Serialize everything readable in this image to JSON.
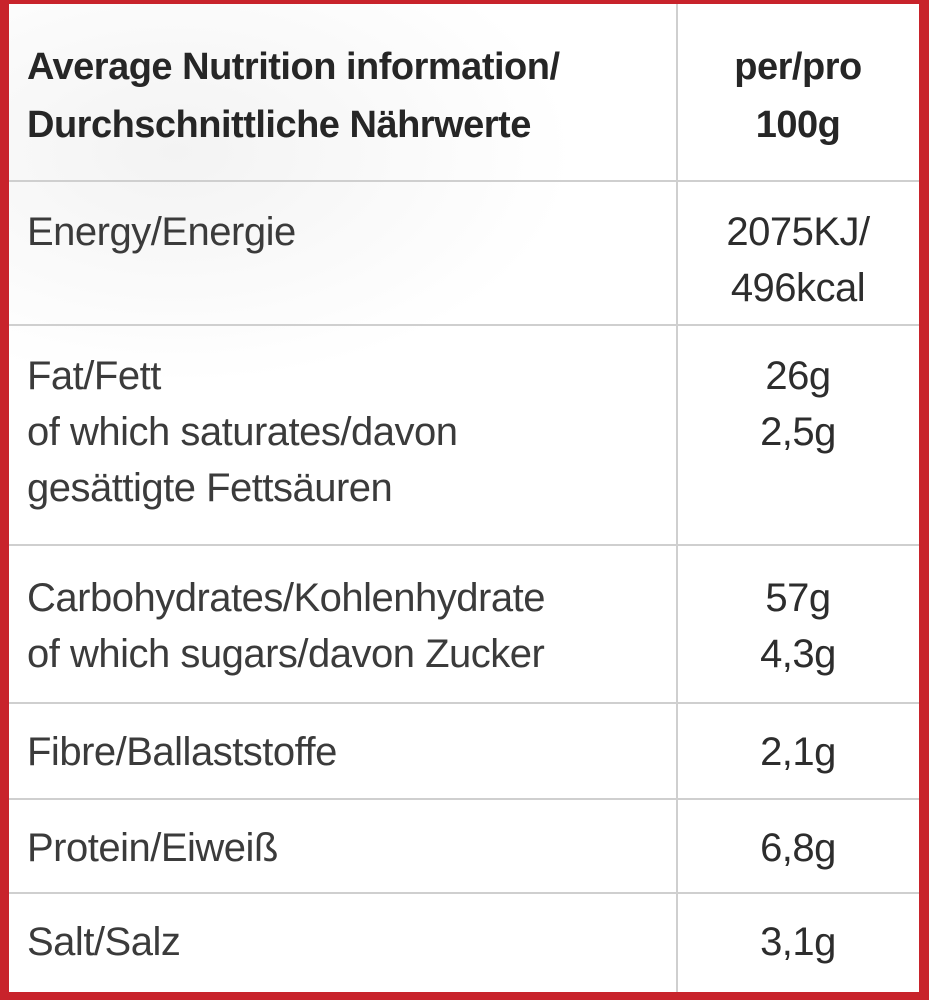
{
  "table": {
    "header": {
      "label_lines": [
        "Average Nutrition information/",
        "Durchschnittliche Nährwerte"
      ],
      "value_lines": [
        "per/pro",
        "100g"
      ]
    },
    "rows": [
      {
        "label_lines": [
          "Energy/Energie"
        ],
        "value_lines": [
          "2075KJ/",
          "496kcal"
        ]
      },
      {
        "label_lines": [
          "Fat/Fett",
          "of which saturates/davon",
          "gesättigte Fettsäuren"
        ],
        "value_lines": [
          "26g",
          "2,5g"
        ]
      },
      {
        "label_lines": [
          "Carbohydrates/Kohlenhydrate",
          "of which sugars/davon Zucker"
        ],
        "value_lines": [
          "57g",
          "4,3g"
        ]
      },
      {
        "label_lines": [
          "Fibre/Ballaststoffe"
        ],
        "value_lines": [
          "2,1g"
        ]
      },
      {
        "label_lines": [
          "Protein/Eiweiß"
        ],
        "value_lines": [
          "6,8g"
        ]
      },
      {
        "label_lines": [
          "Salt/Salz"
        ],
        "value_lines": [
          "3,1g"
        ]
      }
    ]
  },
  "colors": {
    "frame": "#c8232b",
    "background": "#ffffff",
    "grid": "#cfcfcf"
  }
}
